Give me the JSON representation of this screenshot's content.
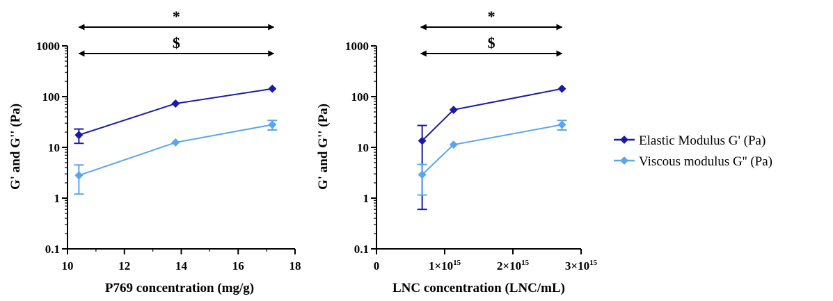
{
  "chart_data": [
    {
      "type": "line",
      "xlabel": "P769 concentration (mg/g)",
      "ylabel": "G' and G'' (Pa)",
      "x_scale": "linear",
      "y_scale": "log",
      "xlim": [
        10,
        18
      ],
      "ylim": [
        0.1,
        1000
      ],
      "x_ticks": [
        10,
        12,
        14,
        16,
        18
      ],
      "x_tick_labels": [
        "10",
        "12",
        "14",
        "16",
        "18"
      ],
      "y_ticks": [
        0.1,
        1,
        10,
        100,
        1000
      ],
      "y_tick_labels": [
        "0.1",
        "1",
        "10",
        "100",
        "1000"
      ],
      "significance": [
        {
          "symbol": "*",
          "from": 10.4,
          "to": 17.25
        },
        {
          "symbol": "$",
          "from": 10.4,
          "to": 17.25
        }
      ],
      "series": [
        {
          "name": "Elastic Modulus G' (Pa)",
          "color": "#1a1aa6",
          "marker": "diamond",
          "x": [
            10.4,
            13.8,
            17.2
          ],
          "y": [
            17.5,
            73,
            143
          ],
          "err_low": [
            12,
            73,
            143
          ],
          "err_high": [
            23,
            73,
            143
          ]
        },
        {
          "name": "Viscous modulus G'' (Pa)",
          "color": "#5aa5f0",
          "marker": "diamond",
          "x": [
            10.4,
            13.8,
            17.2
          ],
          "y": [
            2.8,
            12.5,
            28
          ],
          "err_low": [
            1.2,
            12.5,
            22
          ],
          "err_high": [
            4.5,
            12.5,
            34
          ]
        }
      ]
    },
    {
      "type": "line",
      "xlabel": "LNC concentration (LNC/mL)",
      "ylabel": "G' and G'' (Pa)",
      "x_scale": "linear",
      "y_scale": "log",
      "xlim": [
        0,
        3000000000000000.0
      ],
      "ylim": [
        0.1,
        1000
      ],
      "x_ticks": [
        0,
        1000000000000000.0,
        2000000000000000.0,
        3000000000000000.0
      ],
      "x_tick_labels": [
        {
          "base": "0",
          "exp": ""
        },
        {
          "base": "1×10",
          "exp": "15"
        },
        {
          "base": "2×10",
          "exp": "15"
        },
        {
          "base": "3×10",
          "exp": "15"
        }
      ],
      "y_ticks": [
        0.1,
        1,
        10,
        100,
        1000
      ],
      "y_tick_labels": [
        "0.1",
        "1",
        "10",
        "100",
        "1000"
      ],
      "significance": [
        {
          "symbol": "*",
          "from": 650000000000000.0,
          "to": 2720000000000000.0
        },
        {
          "symbol": "$",
          "from": 650000000000000.0,
          "to": 2720000000000000.0
        }
      ],
      "series": [
        {
          "name": "Elastic Modulus G' (Pa)",
          "color": "#1a1aa6",
          "marker": "diamond",
          "x": [
            670000000000000.0,
            1130000000000000.0,
            2720000000000000.0
          ],
          "y": [
            13.5,
            55,
            143
          ],
          "err_low": [
            0.6,
            55,
            143
          ],
          "err_high": [
            27,
            55,
            143
          ]
        },
        {
          "name": "Viscous modulus G'' (Pa)",
          "color": "#5aa5f0",
          "marker": "diamond",
          "x": [
            670000000000000.0,
            1130000000000000.0,
            2720000000000000.0
          ],
          "y": [
            2.9,
            11.3,
            28
          ],
          "err_low": [
            1.15,
            11.3,
            22
          ],
          "err_high": [
            4.6,
            11.3,
            34
          ]
        }
      ]
    }
  ],
  "legend": {
    "items": [
      {
        "label": "Elastic Modulus G' (Pa)",
        "color": "#1a1aa6"
      },
      {
        "label": "Viscous modulus G'' (Pa)",
        "color": "#5aa5f0"
      }
    ]
  }
}
